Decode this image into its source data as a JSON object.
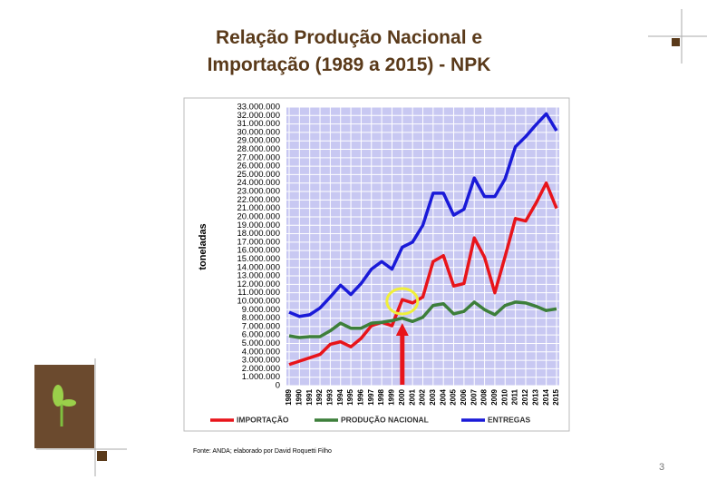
{
  "chart_data": {
    "type": "line",
    "title": "Relação Produção Nacional e Importação (1989 a 2015) - NPK",
    "y_label": "toneladas",
    "categories": [
      "1989",
      "1990",
      "1991",
      "1992",
      "1993",
      "1994",
      "1995",
      "1996",
      "1997",
      "1998",
      "1999",
      "2000",
      "2001",
      "2002",
      "2003",
      "2004",
      "2005",
      "2006",
      "2007",
      "2008",
      "2009",
      "2010",
      "2011",
      "2012",
      "2013",
      "2014",
      "2015"
    ],
    "series": [
      {
        "name": "IMPORTAÇÃO",
        "color": "#e8141a",
        "values": [
          2500000,
          2900000,
          3300000,
          3700000,
          4900000,
          5200000,
          4600000,
          5600000,
          7100000,
          7500000,
          7100000,
          10200000,
          9800000,
          10500000,
          14700000,
          15400000,
          11800000,
          12100000,
          17500000,
          15200000,
          11000000,
          15300000,
          19800000,
          19500000,
          21600000,
          24000000,
          21000000
        ]
      },
      {
        "name": "PRODUÇÃO NACIONAL",
        "color": "#3d7f3a",
        "values": [
          5900000,
          5700000,
          5800000,
          5800000,
          6500000,
          7400000,
          6800000,
          6800000,
          7400000,
          7500000,
          7700000,
          8000000,
          7600000,
          8100000,
          9500000,
          9700000,
          8500000,
          8800000,
          9900000,
          9000000,
          8400000,
          9500000,
          9900000,
          9800000,
          9400000,
          8900000,
          9100000
        ]
      },
      {
        "name": "ENTREGAS",
        "color": "#1a1ad8",
        "values": [
          8700000,
          8200000,
          8400000,
          9200000,
          10500000,
          11900000,
          10800000,
          12100000,
          13800000,
          14700000,
          13800000,
          16400000,
          17000000,
          19000000,
          22800000,
          22800000,
          20200000,
          20900000,
          24600000,
          22400000,
          22400000,
          24500000,
          28300000,
          29500000,
          30900000,
          32200000,
          30200000
        ]
      }
    ],
    "ylim": [
      0,
      33000000
    ],
    "yticks": [
      0,
      {
        "value": 1000000,
        "label": "1.000.000"
      },
      {
        "value": 2000000,
        "label": "2.000.000"
      },
      {
        "value": 3000000,
        "label": "3.000.000"
      },
      {
        "value": 4000000,
        "label": "4.000.000"
      },
      {
        "value": 5000000,
        "label": "5.000.000"
      },
      {
        "value": 6000000,
        "label": "6.000.000"
      },
      {
        "value": 7000000,
        "label": "7.000.000"
      },
      {
        "value": 8000000,
        "label": "8.000.000"
      },
      {
        "value": 9000000,
        "label": "9.000.000"
      },
      {
        "value": 10000000,
        "label": "10.000.000"
      },
      {
        "value": 11000000,
        "label": "11.000.000"
      },
      {
        "value": 12000000,
        "label": "12.000.000"
      },
      {
        "value": 13000000,
        "label": "13.000.000"
      },
      {
        "value": 14000000,
        "label": "14.000.000"
      },
      {
        "value": 15000000,
        "label": "15.000.000"
      },
      {
        "value": 16000000,
        "label": "16.000.000"
      },
      {
        "value": 17000000,
        "label": "17.000.000"
      },
      {
        "value": 18000000,
        "label": "18.000.000"
      },
      {
        "value": 19000000,
        "label": "19.000.000"
      },
      {
        "value": 20000000,
        "label": "20.000.000"
      },
      {
        "value": 21000000,
        "label": "21.000.000"
      },
      {
        "value": 22000000,
        "label": "22.000.000"
      },
      {
        "value": 23000000,
        "label": "23.000.000"
      },
      {
        "value": 24000000,
        "label": "24.000.000"
      },
      {
        "value": 25000000,
        "label": "25.000.000"
      },
      {
        "value": 26000000,
        "label": "26.000.000"
      },
      {
        "value": 27000000,
        "label": "27.000.000"
      },
      {
        "value": 28000000,
        "label": "28.000.000"
      },
      {
        "value": 29000000,
        "label": "29.000.000"
      },
      {
        "value": 30000000,
        "label": "30.000.000"
      },
      {
        "value": 31000000,
        "label": "31.000.000"
      },
      {
        "value": 32000000,
        "label": "32.000.000"
      },
      {
        "value": 33000000,
        "label": "33.000.000"
      }
    ],
    "grid": true,
    "source": "Fonte: ANDA; elaborado por David Roquetti Filho"
  },
  "slide": {
    "page_number": "3"
  }
}
